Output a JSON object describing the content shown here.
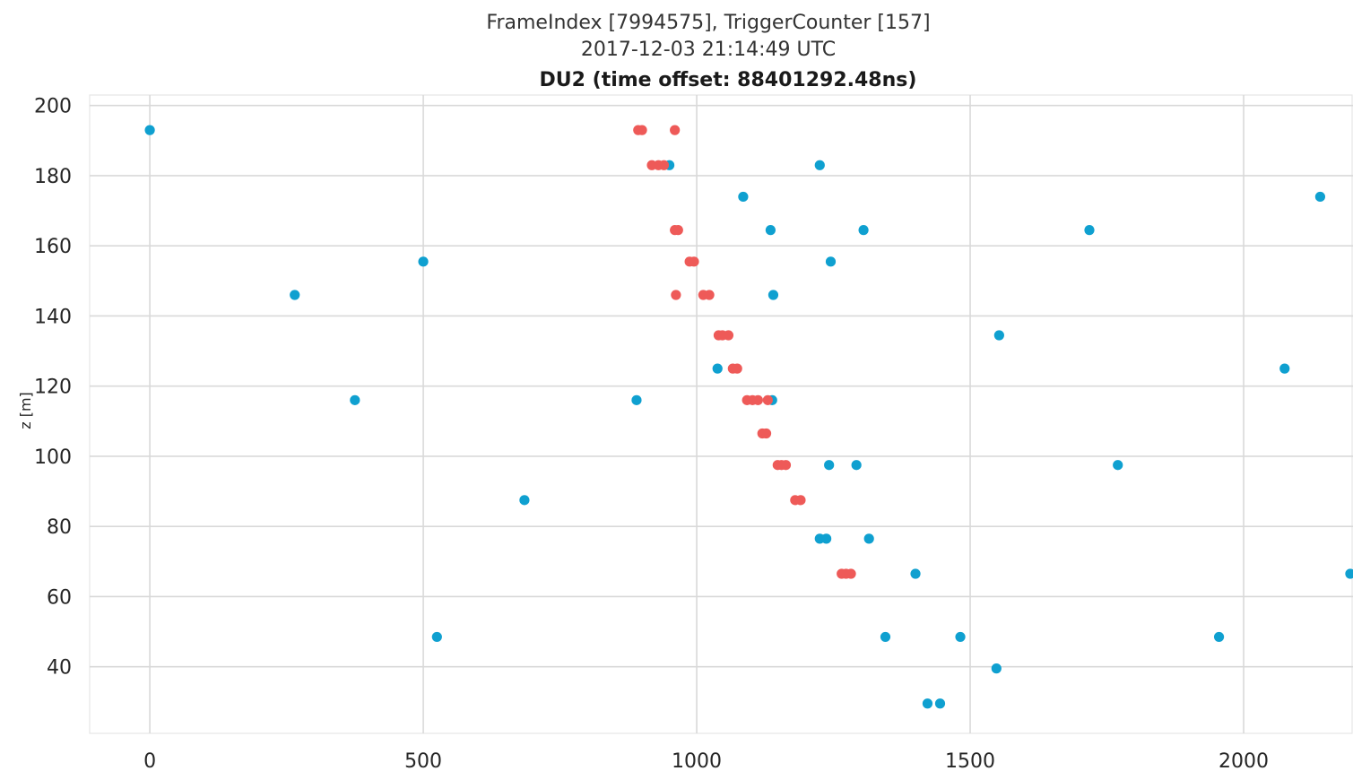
{
  "chart_data": {
    "type": "scatter",
    "title": "FrameIndex [7994575], TriggerCounter [157]",
    "subtitle": "2017-12-03 21:14:49 UTC",
    "panel_title": "DU2 (time offset: 88401292.48ns)",
    "xlabel": "",
    "ylabel": "z [m]",
    "xlim": [
      -110,
      2200
    ],
    "ylim": [
      21,
      203
    ],
    "x_ticks": [
      "0",
      "500",
      "1000",
      "1500",
      "2000"
    ],
    "y_ticks": [
      "40",
      "60",
      "80",
      "100",
      "120",
      "140",
      "160",
      "180",
      "200"
    ],
    "grid": true,
    "legend": "none",
    "series": [
      {
        "color": "#0fa0d0",
        "points": [
          [
            0,
            193
          ],
          [
            950,
            183
          ],
          [
            1225,
            183
          ],
          [
            1085,
            174
          ],
          [
            2140,
            174
          ],
          [
            1135,
            164.5
          ],
          [
            1305,
            164.5
          ],
          [
            1718,
            164.5
          ],
          [
            500,
            155.5
          ],
          [
            1245,
            155.5
          ],
          [
            265,
            146
          ],
          [
            1140,
            146
          ],
          [
            1553,
            134.5
          ],
          [
            1038,
            125
          ],
          [
            2075,
            125
          ],
          [
            375,
            116
          ],
          [
            890,
            116
          ],
          [
            1138,
            116
          ],
          [
            1242,
            97.5
          ],
          [
            1292,
            97.5
          ],
          [
            1770,
            97.5
          ],
          [
            685,
            87.5
          ],
          [
            1225,
            76.5
          ],
          [
            1237,
            76.5
          ],
          [
            1315,
            76.5
          ],
          [
            1400,
            66.5
          ],
          [
            2195,
            66.5
          ],
          [
            525,
            48.5
          ],
          [
            1345,
            48.5
          ],
          [
            1482,
            48.5
          ],
          [
            1955,
            48.5
          ],
          [
            1548,
            39.5
          ],
          [
            1422,
            29.5
          ],
          [
            1445,
            29.5
          ]
        ]
      },
      {
        "color": "#ee5a58",
        "points": [
          [
            893,
            193
          ],
          [
            900,
            193
          ],
          [
            960,
            193
          ],
          [
            918,
            183
          ],
          [
            930,
            183
          ],
          [
            940,
            183
          ],
          [
            960,
            164.5
          ],
          [
            966,
            164.5
          ],
          [
            987,
            155.5
          ],
          [
            995,
            155.5
          ],
          [
            962,
            146
          ],
          [
            1012,
            146
          ],
          [
            1023,
            146
          ],
          [
            1040,
            134.5
          ],
          [
            1047,
            134.5
          ],
          [
            1058,
            134.5
          ],
          [
            1066,
            125
          ],
          [
            1074,
            125
          ],
          [
            1092,
            116
          ],
          [
            1102,
            116
          ],
          [
            1112,
            116
          ],
          [
            1130,
            116
          ],
          [
            1120,
            106.5
          ],
          [
            1127,
            106.5
          ],
          [
            1148,
            97.5
          ],
          [
            1155,
            97.5
          ],
          [
            1163,
            97.5
          ],
          [
            1180,
            87.5
          ],
          [
            1190,
            87.5
          ],
          [
            1265,
            66.5
          ],
          [
            1273,
            66.5
          ],
          [
            1282,
            66.5
          ]
        ]
      }
    ]
  }
}
